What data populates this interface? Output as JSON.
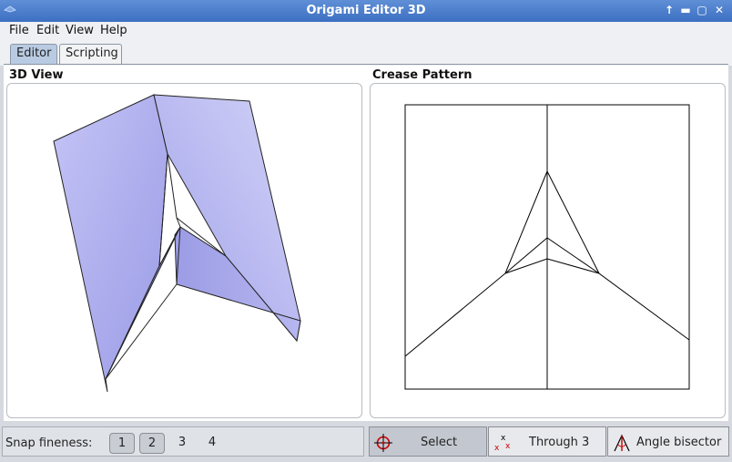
{
  "window": {
    "title": "Origami Editor 3D"
  },
  "menu": {
    "file": "File",
    "edit": "Edit",
    "view": "View",
    "help": "Help"
  },
  "tabs": {
    "editor": "Editor",
    "scripting": "Scripting",
    "active": "Editor"
  },
  "panels": {
    "view3d_label": "3D View",
    "crease_label": "Crease Pattern"
  },
  "snap": {
    "label": "Snap fineness:",
    "options": [
      "1",
      "2",
      "3",
      "4"
    ]
  },
  "tools": {
    "select": "Select",
    "through3": "Through 3",
    "angle_bisector": "Angle bisector",
    "active": "Select"
  },
  "colors": {
    "titlebar": "#4a7cce",
    "paper_fill": "#b8b8f2",
    "crease_line": "#000000"
  }
}
